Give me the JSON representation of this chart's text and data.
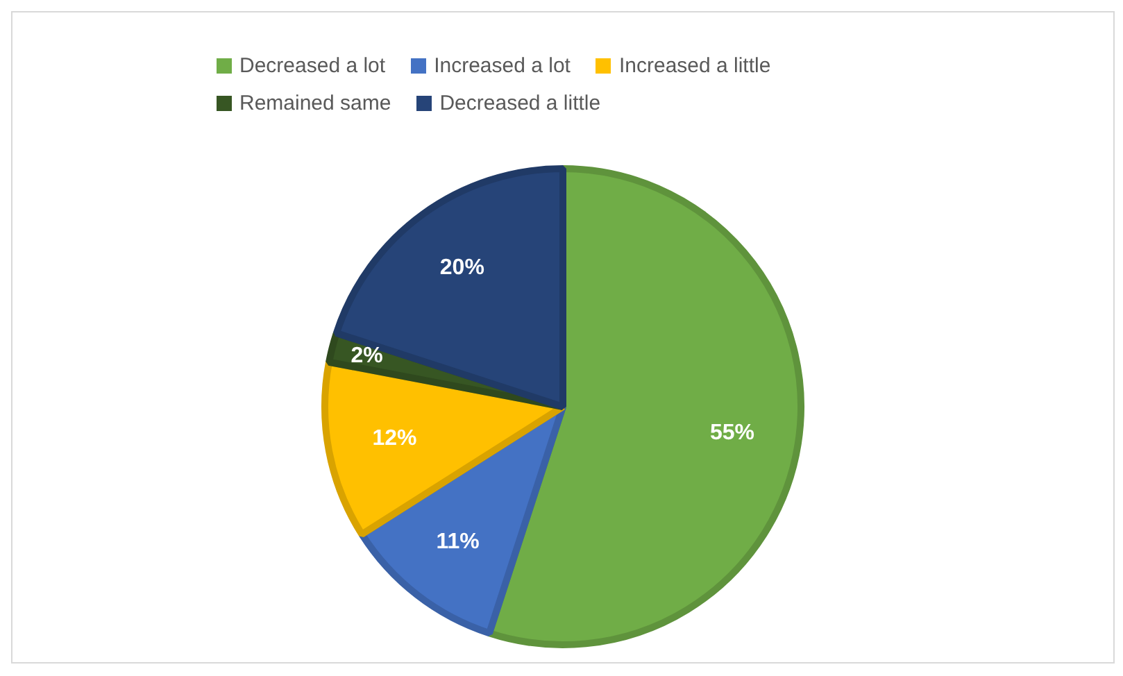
{
  "chart_data": {
    "type": "pie",
    "categories": [
      "Decreased a lot",
      "Increased a lot",
      "Increased a little",
      "Remained same",
      "Decreased a little"
    ],
    "values": [
      55,
      11,
      12,
      2,
      20
    ],
    "colors": [
      "#70ad47",
      "#4472c4",
      "#ffc000",
      "#375623",
      "#264478"
    ],
    "value_labels": [
      "55%",
      "11%",
      "12%",
      "2%",
      "20%"
    ],
    "legend": "top"
  }
}
